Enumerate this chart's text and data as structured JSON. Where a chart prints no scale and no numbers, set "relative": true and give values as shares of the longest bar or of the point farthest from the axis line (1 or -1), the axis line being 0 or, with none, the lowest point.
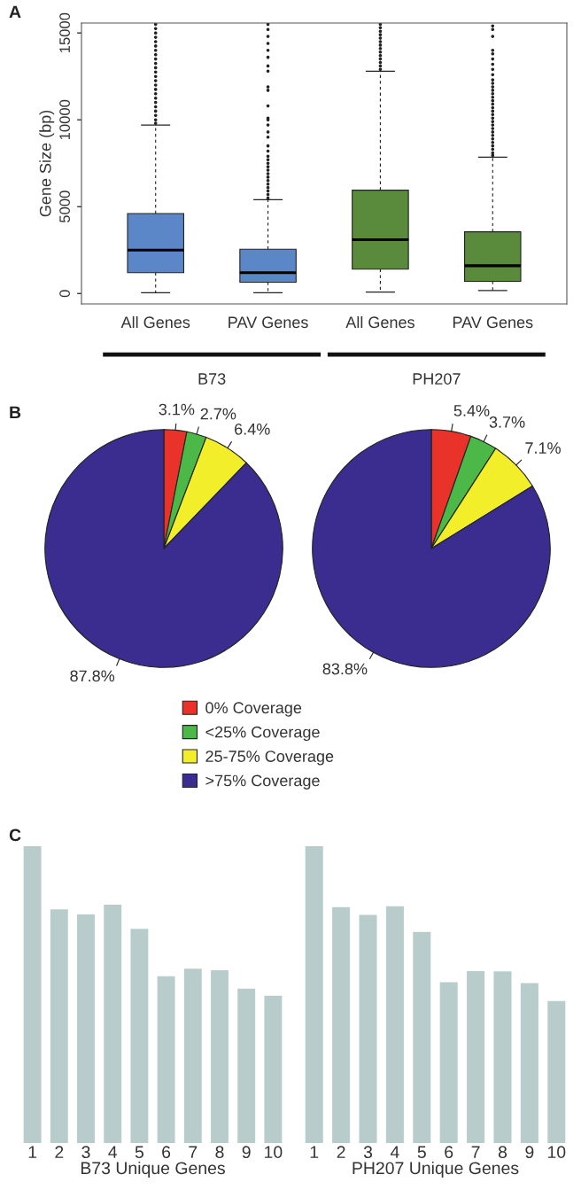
{
  "chart_data": [
    {
      "type": "box",
      "title": "A",
      "ylabel": "Gene Size (bp)",
      "categories": [
        "All Genes",
        "PAV Genes",
        "All Genes",
        "PAV Genes"
      ],
      "colors": [
        "#5b87c8",
        "#5b87c8",
        "#5a8a3c",
        "#5a8a3c"
      ],
      "boxes": [
        {
          "low": 50,
          "q1": 1200,
          "median": 2500,
          "q3": 4600,
          "high": 9700,
          "outliers": [
            9800,
            10000,
            10250,
            10500,
            10750,
            11000,
            11250,
            11500,
            11750,
            12000,
            12250,
            12500,
            12750,
            13000,
            13250,
            13500,
            13750,
            14000,
            14250,
            14500,
            14750,
            15000,
            15250,
            15500
          ]
        },
        {
          "low": 50,
          "q1": 650,
          "median": 1200,
          "q3": 2550,
          "high": 5400,
          "outliers": [
            5500,
            5700,
            5900,
            6100,
            6300,
            6500,
            6700,
            6900,
            7100,
            7300,
            7500,
            7700,
            7900,
            8200,
            8500,
            9000,
            9300,
            9700,
            10000,
            10100,
            10800,
            11700,
            11900,
            12800,
            13100,
            13600,
            14000,
            14400,
            14800,
            15200,
            15500
          ]
        },
        {
          "low": 80,
          "q1": 1400,
          "median": 3100,
          "q3": 5950,
          "high": 12800,
          "outliers": [
            12900,
            13100,
            13300,
            13500,
            13700,
            13900,
            14100,
            14300,
            14500,
            14700,
            14900,
            15100,
            15300,
            15500
          ]
        },
        {
          "low": 170,
          "q1": 700,
          "median": 1600,
          "q3": 3550,
          "high": 7850,
          "outliers": [
            7950,
            8100,
            8300,
            8500,
            8700,
            8900,
            9100,
            9300,
            9500,
            9700,
            9900,
            10100,
            10300,
            10500,
            10700,
            10900,
            11100,
            11300,
            11500,
            11700,
            11900,
            12100,
            12300,
            12600,
            12900,
            13200,
            13500,
            13800,
            14000,
            14800,
            15200,
            15400
          ]
        }
      ],
      "ylim": [
        -600,
        15570
      ],
      "yticks": [
        0,
        5000,
        10000,
        15000
      ],
      "annotations": [
        "B73",
        "PH207"
      ]
    },
    {
      "type": "pie",
      "title": "B",
      "categories": [
        "0% Coverage",
        "<25% Coverage",
        "25-75% Coverage",
        ">75% Coverage"
      ],
      "values": [
        3.1,
        2.7,
        6.4,
        87.8
      ],
      "value_labels": [
        "3.1%",
        "2.7%",
        "6.4%",
        "87.8%"
      ],
      "colors": [
        "#e8322a",
        "#4cb848",
        "#f2ee2a",
        "#3a2d8f"
      ],
      "legend": "bottom"
    },
    {
      "type": "pie",
      "values": [
        5.4,
        3.7,
        7.1,
        83.8
      ],
      "value_labels": [
        "5.4%",
        "3.7%",
        "7.1%",
        "83.8%"
      ],
      "colors": [
        "#e8322a",
        "#4cb848",
        "#f2ee2a",
        "#3a2d8f"
      ]
    },
    {
      "type": "bar",
      "title": "C",
      "xlabel": "B73 Unique Genes",
      "relative": true,
      "color": "#b9cccc",
      "categories": [
        "1",
        "2",
        "3",
        "4",
        "5",
        "6",
        "7",
        "8",
        "9",
        "10"
      ],
      "values": [
        1,
        0.787,
        0.77,
        0.803,
        0.722,
        0.562,
        0.587,
        0.582,
        0.52,
        0.496
      ]
    },
    {
      "type": "bar",
      "xlabel": "PH207 Unique Genes",
      "relative": true,
      "color": "#b9cccc",
      "categories": [
        "1",
        "2",
        "3",
        "4",
        "5",
        "6",
        "7",
        "8",
        "9",
        "10"
      ],
      "values": [
        1,
        0.795,
        0.769,
        0.798,
        0.711,
        0.542,
        0.579,
        0.578,
        0.539,
        0.478
      ]
    }
  ]
}
